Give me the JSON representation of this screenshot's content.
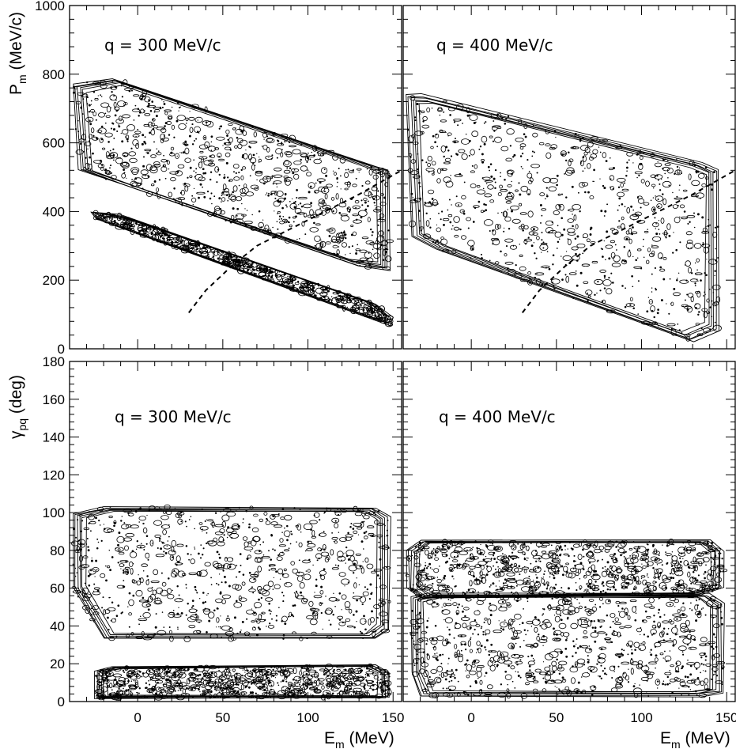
{
  "chart_data": [
    {
      "type": "contour",
      "panel": "top-left",
      "label": "q = 300 MeV/c",
      "ylabel_main": "P",
      "ylabel_sub": "m",
      "ylabel_unit": " (MeV/c)",
      "xlim": [
        -40,
        155
      ],
      "ylim": [
        0,
        1000
      ],
      "yticks": [
        0,
        200,
        400,
        600,
        800,
        1000
      ],
      "regions": [
        {
          "name": "",
          "polygon": [
            [
              -38,
              770
            ],
            [
              -15,
              790
            ],
            [
              135,
              540
            ],
            [
              148,
              520
            ],
            [
              148,
              230
            ],
            [
              130,
              240
            ],
            [
              -5,
              470
            ],
            [
              -35,
              520
            ]
          ]
        },
        {
          "name": "",
          "polygon": [
            [
              -28,
              400
            ],
            [
              -25,
              380
            ],
            [
              148,
              70
            ],
            [
              150,
              90
            ],
            [
              140,
              130
            ],
            [
              -10,
              390
            ]
          ]
        }
      ],
      "dashed_curve": [
        [
          30,
          105
        ],
        [
          40,
          170
        ],
        [
          55,
          240
        ],
        [
          70,
          300
        ],
        [
          90,
          350
        ],
        [
          110,
          400
        ],
        [
          130,
          450
        ],
        [
          155,
          520
        ]
      ]
    },
    {
      "type": "contour",
      "panel": "top-right",
      "label": "q = 400 MeV/c",
      "xlim": [
        -40,
        155
      ],
      "ylim": [
        0,
        1000
      ],
      "regions": [
        {
          "name": "",
          "polygon": [
            [
              -38,
              740
            ],
            [
              -30,
              740
            ],
            [
              135,
              540
            ],
            [
              145,
              520
            ],
            [
              145,
              50
            ],
            [
              130,
              20
            ],
            [
              -20,
              290
            ],
            [
              -35,
              330
            ]
          ]
        }
      ],
      "dashed_curve": [
        [
          30,
          105
        ],
        [
          40,
          170
        ],
        [
          55,
          240
        ],
        [
          70,
          300
        ],
        [
          90,
          350
        ],
        [
          110,
          400
        ],
        [
          130,
          450
        ],
        [
          155,
          520
        ]
      ]
    },
    {
      "type": "contour",
      "panel": "bottom-left",
      "label": "q = 300 MeV/c",
      "ylabel_main": "γ",
      "ylabel_sub": "pq",
      "ylabel_unit": " (deg)",
      "xlabel_main": "E",
      "xlabel_sub": "m",
      "xlabel_unit": " (MeV)",
      "xlim": [
        -40,
        155
      ],
      "ylim": [
        0,
        180
      ],
      "xticks": [
        0,
        50,
        100,
        150
      ],
      "yticks": [
        0,
        20,
        40,
        60,
        80,
        100,
        120,
        140,
        160,
        180
      ],
      "regions": [
        {
          "name": "",
          "polygon": [
            [
              -38,
              99
            ],
            [
              -20,
              103
            ],
            [
              140,
              103
            ],
            [
              148,
              98
            ],
            [
              148,
              38
            ],
            [
              140,
              33
            ],
            [
              -20,
              33
            ],
            [
              -38,
              60
            ]
          ]
        },
        {
          "name": "",
          "polygon": [
            [
              -25,
              16
            ],
            [
              -15,
              18
            ],
            [
              140,
              19
            ],
            [
              148,
              15
            ],
            [
              148,
              2
            ],
            [
              -25,
              2
            ]
          ]
        }
      ]
    },
    {
      "type": "contour",
      "panel": "bottom-right",
      "label": "q = 400 MeV/c",
      "xlabel_main": "E",
      "xlabel_sub": "m",
      "xlabel_unit": " (MeV)",
      "xlim": [
        -40,
        155
      ],
      "ylim": [
        0,
        180
      ],
      "xticks": [
        0,
        50,
        100,
        150
      ],
      "regions": [
        {
          "name": "",
          "polygon": [
            [
              -38,
              80
            ],
            [
              -30,
              85
            ],
            [
              140,
              85
            ],
            [
              148,
              80
            ],
            [
              148,
              60
            ],
            [
              135,
              57
            ],
            [
              -30,
              55
            ],
            [
              -38,
              60
            ]
          ]
        },
        {
          "name": "",
          "polygon": [
            [
              -35,
              55
            ],
            [
              -25,
              57
            ],
            [
              140,
              57
            ],
            [
              148,
              52
            ],
            [
              148,
              5
            ],
            [
              135,
              3
            ],
            [
              -30,
              3
            ],
            [
              -35,
              15
            ]
          ]
        }
      ]
    }
  ]
}
